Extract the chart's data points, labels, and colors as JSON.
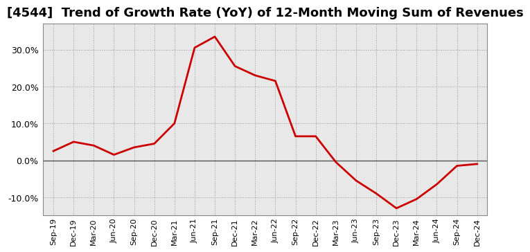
{
  "title": "[4544]  Trend of Growth Rate (YoY) of 12-Month Moving Sum of Revenues",
  "x_labels": [
    "Sep-19",
    "Dec-19",
    "Mar-20",
    "Jun-20",
    "Sep-20",
    "Dec-20",
    "Mar-21",
    "Jun-21",
    "Sep-21",
    "Dec-21",
    "Mar-22",
    "Jun-22",
    "Sep-22",
    "Dec-22",
    "Mar-23",
    "Jun-23",
    "Sep-23",
    "Dec-23",
    "Mar-24",
    "Jun-24",
    "Sep-24",
    "Dec-24"
  ],
  "y_values": [
    2.5,
    5.0,
    4.0,
    1.5,
    3.5,
    4.5,
    10.0,
    30.5,
    33.5,
    25.5,
    23.0,
    21.5,
    6.5,
    6.5,
    -0.5,
    -5.5,
    -9.0,
    -13.0,
    -10.5,
    -6.5,
    -1.5,
    -1.0
  ],
  "line_color": "#cc0000",
  "line_width": 2.0,
  "ylim": [
    -15,
    37
  ],
  "yticks": [
    -10,
    0,
    10,
    20,
    30
  ],
  "grid_color": "#999999",
  "plot_bg_color": "#e8e8e8",
  "outer_bg_color": "#ffffff",
  "title_fontsize": 13,
  "zero_line_color": "#555555",
  "tick_fontsize": 9,
  "x_tick_fontsize": 8
}
